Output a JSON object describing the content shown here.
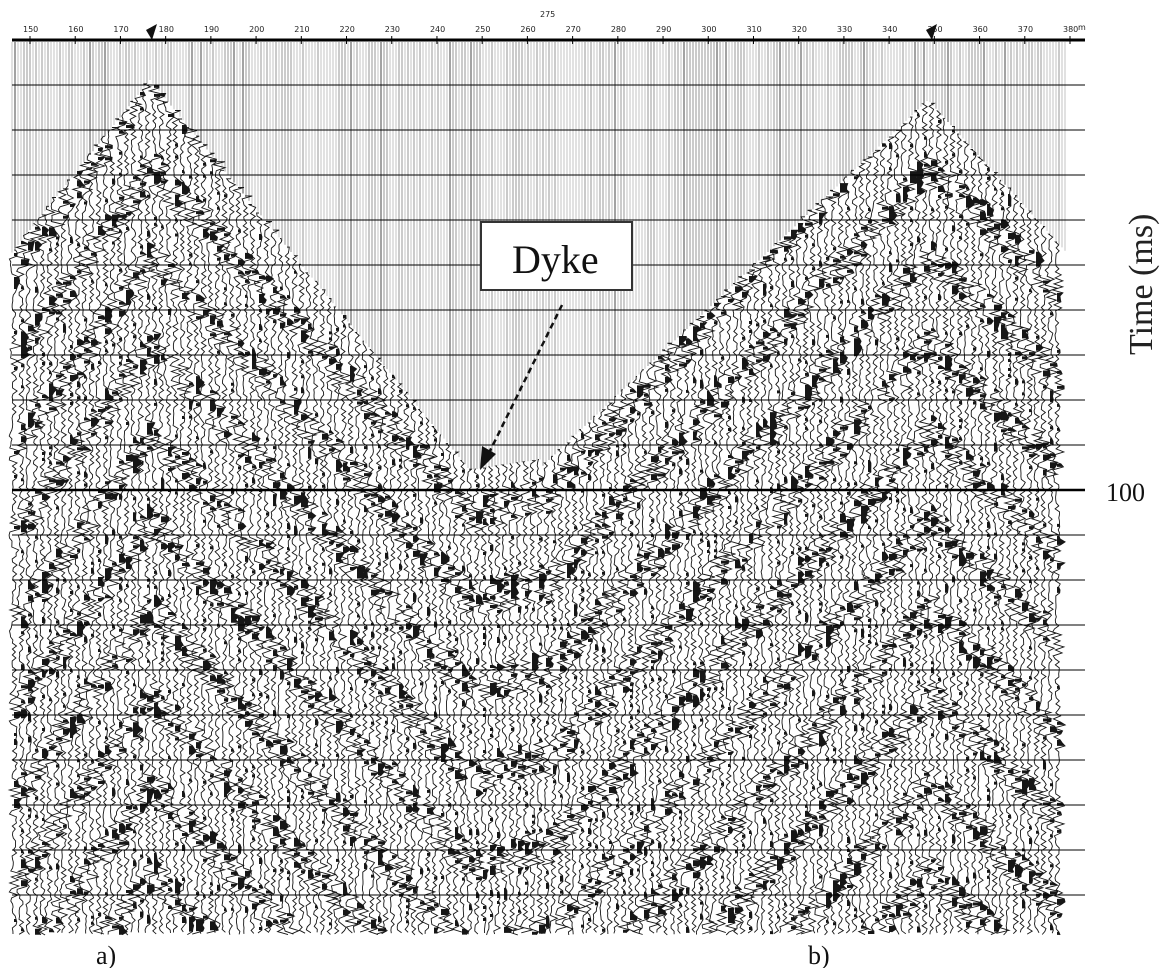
{
  "chart_data": {
    "type": "seismic-record",
    "axis_title": "Time (ms)",
    "time_tick_label": "100",
    "annotation": "Dyke",
    "panels": [
      "a)",
      "b)"
    ],
    "top_ticks": [
      "150",
      "160",
      "170",
      "180",
      "190",
      "200",
      "210",
      "220",
      "230",
      "240",
      "250",
      "260",
      "270",
      "280",
      "290",
      "300",
      "310",
      "320",
      "330",
      "340",
      "350",
      "360",
      "370",
      "380"
    ],
    "top_markers": [
      "275"
    ],
    "corner_label": "m"
  },
  "colors": {
    "trace": "#161616",
    "background": "#ffffff",
    "grid": "#000000",
    "stripe": "#bdbdbd"
  }
}
